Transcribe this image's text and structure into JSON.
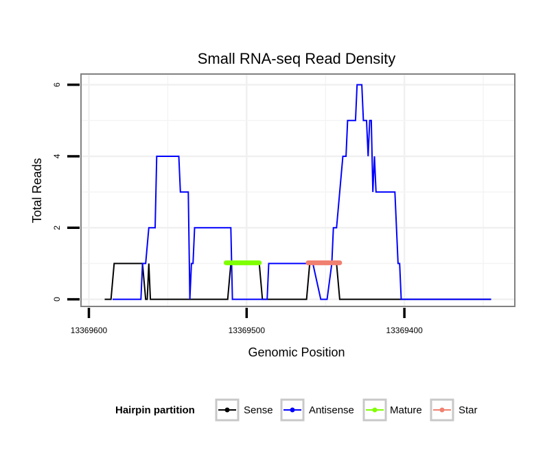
{
  "chart_data": {
    "type": "line",
    "title": "Small RNA-seq Read Density",
    "xlabel": "Genomic Position",
    "ylabel": "Total Reads",
    "xlim": [
      13369605,
      13369330
    ],
    "ylim": [
      -0.2,
      6.3
    ],
    "x_reversed": true,
    "x_ticks": [
      13369600,
      13369500,
      13369400
    ],
    "x_tick_labels": [
      "13369600",
      "13369500",
      "13369400"
    ],
    "y_ticks": [
      0,
      2,
      4,
      6
    ],
    "y_tick_labels": [
      "0",
      "2",
      "4",
      "6"
    ],
    "grid": true,
    "legend": {
      "title": "Hairpin partition",
      "position": "bottom",
      "entries": [
        "Sense",
        "Antisense",
        "Mature",
        "Star"
      ]
    },
    "series": [
      {
        "name": "Sense",
        "color": "#000000",
        "points": [
          [
            13369590,
            0
          ],
          [
            13369586,
            0
          ],
          [
            13369584,
            1
          ],
          [
            13369566,
            1
          ],
          [
            13369564,
            0
          ],
          [
            13369563,
            0
          ],
          [
            13369562,
            1
          ],
          [
            13369561,
            0
          ],
          [
            13369512,
            0
          ],
          [
            13369510,
            1
          ],
          [
            13369492,
            1
          ],
          [
            13369490,
            0
          ],
          [
            13369478,
            0
          ],
          [
            13369476,
            0
          ],
          [
            13369462,
            0
          ],
          [
            13369460,
            1
          ],
          [
            13369443,
            1
          ],
          [
            13369441,
            0
          ],
          [
            13369400,
            0
          ],
          [
            13369345,
            0
          ]
        ]
      },
      {
        "name": "Antisense",
        "color": "#0000ff",
        "points": [
          [
            13369585,
            0
          ],
          [
            13369567,
            0
          ],
          [
            13369566,
            1
          ],
          [
            13369564,
            1
          ],
          [
            13369562,
            2
          ],
          [
            13369558,
            2
          ],
          [
            13369557,
            4
          ],
          [
            13369543,
            4
          ],
          [
            13369542,
            3
          ],
          [
            13369537,
            3
          ],
          [
            13369536,
            0
          ],
          [
            13369535,
            1
          ],
          [
            13369534,
            1
          ],
          [
            13369533,
            2
          ],
          [
            13369510,
            2
          ],
          [
            13369509,
            0
          ],
          [
            13369493,
            0
          ],
          [
            13369488,
            0
          ],
          [
            13369487,
            0
          ],
          [
            13369486,
            1
          ],
          [
            13369450,
            1
          ],
          [
            13369458,
            1
          ],
          [
            13369453,
            0
          ],
          [
            13369449,
            0
          ],
          [
            13369446,
            1
          ],
          [
            13369445,
            2
          ],
          [
            13369443,
            2
          ],
          [
            13369439,
            4
          ],
          [
            13369437,
            4
          ],
          [
            13369436,
            5
          ],
          [
            13369431,
            5
          ],
          [
            13369430,
            6
          ],
          [
            13369427,
            6
          ],
          [
            13369426,
            5
          ],
          [
            13369424,
            5
          ],
          [
            13369423,
            4
          ],
          [
            13369422,
            5
          ],
          [
            13369421,
            5
          ],
          [
            13369420,
            3
          ],
          [
            13369419,
            4
          ],
          [
            13369418,
            3
          ],
          [
            13369406,
            3
          ],
          [
            13369404,
            1
          ],
          [
            13369403,
            1
          ],
          [
            13369402,
            0
          ],
          [
            13369345,
            0
          ]
        ]
      },
      {
        "name": "Mature",
        "color": "#7fff00",
        "points": [
          [
            13369513,
            1.02
          ],
          [
            13369492,
            1.02
          ]
        ]
      },
      {
        "name": "Star",
        "color": "#f08070",
        "points": [
          [
            13369461,
            1.02
          ],
          [
            13369441,
            1.02
          ]
        ]
      }
    ]
  }
}
